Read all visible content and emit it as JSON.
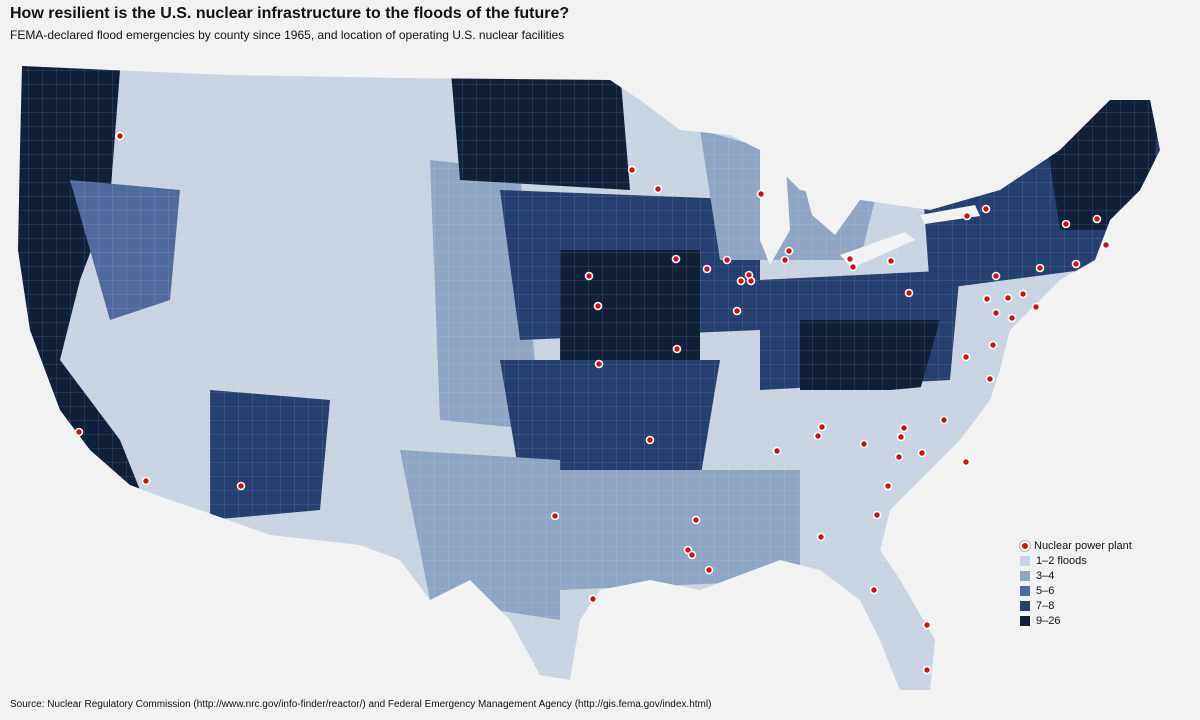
{
  "title": "How resilient is the U.S. nuclear infrastructure to the floods of the future?",
  "subtitle": "FEMA-declared flood emergencies by county since 1965, and location of operating U.S. nuclear facilities",
  "source": "Source: Nuclear Regulatory Commission (http://www.nrc.gov/info-finder/reactor/) and Federal Emergency Management Agency (http://gis.fema.gov/index.html)",
  "legend": {
    "plant_label": "Nuclear power plant",
    "classes": [
      {
        "label": "1–2 floods",
        "color": "#c8d4e2"
      },
      {
        "label": "3–4",
        "color": "#8ea5c4"
      },
      {
        "label": "5–6",
        "color": "#4f6a9c"
      },
      {
        "label": "7–8",
        "color": "#253f70"
      },
      {
        "label": "9–26",
        "color": "#0f2038"
      }
    ]
  },
  "colors": {
    "plant": "#d40f0f",
    "background": "#f2f2f2"
  }
}
